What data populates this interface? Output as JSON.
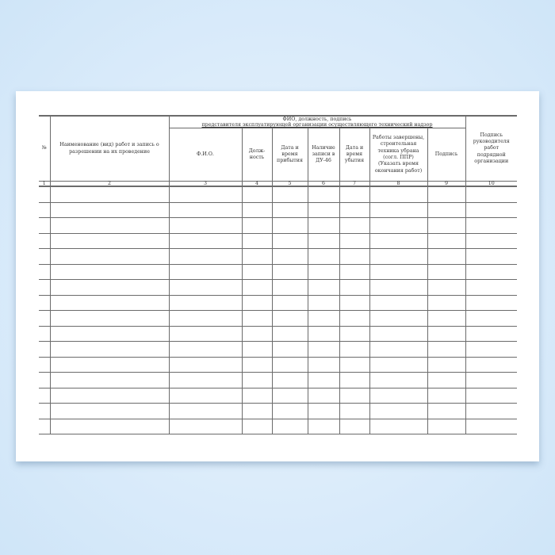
{
  "headers": {
    "num": "№",
    "work": "Наименование (вид) работ и запись о разрешении на их проведение",
    "group_line1": "ФИО, должность, подпись",
    "group_line2": "представителя эксплуатирующей организации осуществляющего технический надзор",
    "fio": "Ф.И.О.",
    "position": "Долж-ность",
    "arrival": "Дата и время прибытия",
    "du46": "Наличие записи в ДУ-46",
    "departure": "Дата и время убытия",
    "completed": "Работы завершены, строительная техника убрана (согл. ППР) (Указать время окончания работ)",
    "signature": "Подпись",
    "contractor": "Подпись руководителя работ подрядной организации"
  },
  "column_numbers": [
    "1",
    "2",
    "3",
    "4",
    "5",
    "6",
    "7",
    "8",
    "9",
    "10"
  ],
  "empty_rows": 16
}
